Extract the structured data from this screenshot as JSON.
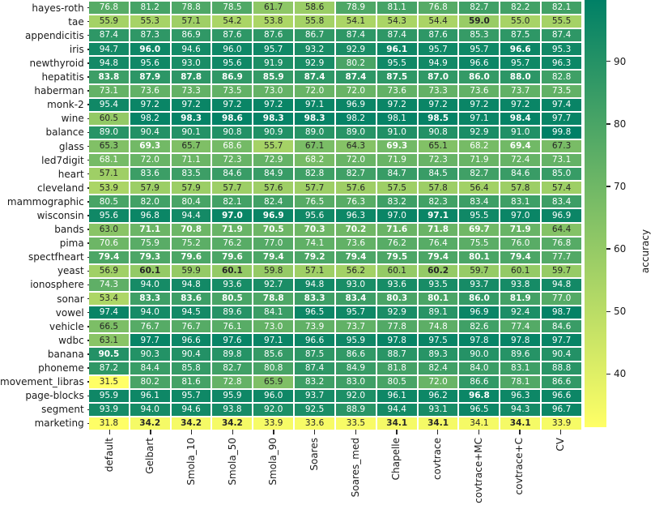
{
  "chart_data": {
    "type": "heatmap",
    "title": "",
    "xlabel": "",
    "ylabel": "",
    "rows": [
      "hayes-roth",
      "tae",
      "appendicitis",
      "iris",
      "newthyroid",
      "hepatitis",
      "haberman",
      "monk-2",
      "wine",
      "balance",
      "glass",
      "led7digit",
      "heart",
      "cleveland",
      "mammographic",
      "wisconsin",
      "bands",
      "pima",
      "spectfheart",
      "yeast",
      "ionosphere",
      "sonar",
      "vowel",
      "vehicle",
      "wdbc",
      "banana",
      "phoneme",
      "movement_libras",
      "page-blocks",
      "segment",
      "marketing"
    ],
    "columns": [
      "default",
      "Gelbart",
      "Smola_10",
      "Smola_50",
      "Smola_90",
      "Soares",
      "Soares_med",
      "Chapelle",
      "covtrace",
      "covtrace+MC",
      "covtrace+C",
      "CV"
    ],
    "values": [
      [
        76.8,
        81.2,
        78.8,
        78.5,
        61.7,
        58.6,
        78.9,
        81.1,
        76.8,
        82.7,
        82.2,
        82.1
      ],
      [
        55.9,
        55.3,
        57.1,
        54.2,
        53.8,
        55.8,
        54.1,
        54.3,
        54.4,
        59.0,
        55.0,
        55.5
      ],
      [
        87.4,
        87.3,
        86.9,
        87.6,
        87.6,
        86.7,
        87.4,
        87.4,
        87.6,
        85.3,
        87.5,
        87.4
      ],
      [
        94.7,
        96.0,
        94.6,
        96.0,
        95.7,
        93.2,
        92.9,
        96.1,
        95.7,
        95.7,
        96.6,
        95.3
      ],
      [
        94.8,
        95.6,
        93.0,
        95.6,
        91.9,
        92.9,
        80.2,
        95.5,
        94.9,
        96.6,
        95.7,
        96.3
      ],
      [
        83.8,
        87.9,
        87.8,
        86.9,
        85.9,
        87.4,
        87.4,
        87.5,
        87.0,
        86.0,
        88.0,
        82.8
      ],
      [
        73.1,
        73.6,
        73.3,
        73.5,
        73.0,
        72.0,
        72.0,
        73.6,
        73.3,
        73.6,
        73.7,
        73.5
      ],
      [
        95.4,
        97.2,
        97.2,
        97.2,
        97.2,
        97.1,
        96.9,
        97.2,
        97.2,
        97.2,
        97.2,
        97.4
      ],
      [
        60.5,
        98.2,
        98.3,
        98.6,
        98.3,
        98.3,
        98.2,
        98.1,
        98.5,
        97.1,
        98.4,
        97.7
      ],
      [
        89.0,
        90.4,
        90.1,
        90.8,
        90.9,
        89.0,
        89.0,
        91.0,
        90.8,
        92.9,
        91.0,
        99.8
      ],
      [
        65.3,
        69.3,
        65.7,
        68.6,
        55.7,
        67.1,
        64.3,
        69.3,
        65.1,
        68.2,
        69.4,
        67.3
      ],
      [
        68.1,
        72.0,
        71.1,
        72.3,
        72.9,
        68.2,
        72.0,
        71.9,
        72.3,
        71.9,
        72.4,
        73.1
      ],
      [
        57.1,
        83.6,
        83.5,
        84.6,
        84.9,
        82.8,
        82.7,
        84.7,
        84.5,
        82.7,
        84.6,
        85.0
      ],
      [
        53.9,
        57.9,
        57.9,
        57.7,
        57.6,
        57.7,
        57.6,
        57.5,
        57.8,
        56.4,
        57.8,
        57.4
      ],
      [
        80.5,
        82.0,
        80.4,
        82.1,
        82.4,
        76.5,
        76.3,
        83.2,
        82.3,
        83.4,
        83.1,
        83.4
      ],
      [
        95.6,
        96.8,
        94.4,
        97.0,
        96.9,
        95.6,
        96.3,
        97.0,
        97.1,
        95.5,
        97.0,
        96.9
      ],
      [
        63.0,
        71.1,
        70.8,
        71.9,
        70.5,
        70.3,
        70.2,
        71.6,
        71.8,
        69.7,
        71.9,
        64.4
      ],
      [
        70.6,
        75.9,
        75.2,
        76.2,
        77.0,
        74.1,
        73.6,
        76.2,
        76.4,
        75.5,
        76.0,
        76.8
      ],
      [
        79.4,
        79.3,
        79.6,
        79.6,
        79.4,
        79.2,
        79.4,
        79.5,
        79.4,
        80.1,
        79.4,
        77.7
      ],
      [
        56.9,
        60.1,
        59.9,
        60.1,
        59.8,
        57.1,
        56.2,
        60.1,
        60.2,
        59.7,
        60.1,
        59.7
      ],
      [
        74.3,
        94.0,
        94.8,
        93.6,
        92.7,
        94.8,
        93.0,
        93.6,
        93.5,
        93.7,
        93.8,
        94.8
      ],
      [
        53.4,
        83.3,
        83.6,
        80.5,
        78.8,
        83.3,
        83.4,
        80.3,
        80.1,
        86.0,
        81.9,
        77.0
      ],
      [
        97.4,
        94.0,
        94.5,
        89.6,
        84.1,
        96.5,
        95.7,
        92.9,
        89.1,
        96.9,
        92.4,
        98.7
      ],
      [
        66.5,
        76.7,
        76.7,
        76.1,
        73.0,
        73.9,
        73.7,
        77.8,
        74.8,
        82.6,
        77.4,
        84.6
      ],
      [
        63.1,
        97.7,
        96.6,
        97.6,
        97.1,
        96.6,
        95.9,
        97.8,
        97.5,
        97.8,
        97.8,
        97.7
      ],
      [
        90.5,
        90.3,
        90.4,
        89.8,
        85.6,
        87.5,
        86.6,
        88.7,
        89.3,
        90.0,
        89.6,
        90.4
      ],
      [
        87.2,
        84.4,
        85.8,
        82.7,
        80.8,
        87.4,
        84.9,
        81.8,
        82.4,
        84.0,
        83.1,
        88.8
      ],
      [
        31.5,
        80.2,
        81.6,
        72.8,
        65.9,
        83.2,
        83.0,
        80.5,
        72.0,
        86.6,
        78.1,
        86.6
      ],
      [
        95.9,
        96.1,
        95.7,
        95.9,
        96.0,
        93.7,
        92.0,
        96.1,
        96.2,
        96.8,
        96.3,
        96.6
      ],
      [
        93.9,
        94.0,
        94.6,
        93.8,
        92.0,
        92.5,
        88.9,
        94.4,
        93.1,
        96.5,
        94.3,
        96.7
      ],
      [
        31.8,
        34.2,
        34.2,
        34.2,
        33.9,
        33.6,
        33.5,
        34.1,
        34.1,
        34.1,
        34.1,
        33.9
      ]
    ],
    "bold_cells": [
      [
        1,
        9
      ],
      [
        3,
        1
      ],
      [
        3,
        7
      ],
      [
        3,
        10
      ],
      [
        5,
        0
      ],
      [
        5,
        1
      ],
      [
        5,
        2
      ],
      [
        5,
        3
      ],
      [
        5,
        4
      ],
      [
        5,
        5
      ],
      [
        5,
        6
      ],
      [
        5,
        7
      ],
      [
        5,
        8
      ],
      [
        5,
        9
      ],
      [
        5,
        10
      ],
      [
        8,
        2
      ],
      [
        8,
        3
      ],
      [
        8,
        4
      ],
      [
        8,
        5
      ],
      [
        8,
        8
      ],
      [
        8,
        10
      ],
      [
        10,
        1
      ],
      [
        10,
        7
      ],
      [
        10,
        10
      ],
      [
        15,
        3
      ],
      [
        15,
        4
      ],
      [
        15,
        8
      ],
      [
        16,
        1
      ],
      [
        16,
        2
      ],
      [
        16,
        3
      ],
      [
        16,
        4
      ],
      [
        16,
        5
      ],
      [
        16,
        6
      ],
      [
        16,
        7
      ],
      [
        16,
        8
      ],
      [
        16,
        9
      ],
      [
        16,
        10
      ],
      [
        18,
        0
      ],
      [
        18,
        1
      ],
      [
        18,
        2
      ],
      [
        18,
        3
      ],
      [
        18,
        4
      ],
      [
        18,
        5
      ],
      [
        18,
        6
      ],
      [
        18,
        7
      ],
      [
        18,
        8
      ],
      [
        18,
        9
      ],
      [
        18,
        10
      ],
      [
        19,
        1
      ],
      [
        19,
        3
      ],
      [
        19,
        8
      ],
      [
        21,
        1
      ],
      [
        21,
        2
      ],
      [
        21,
        3
      ],
      [
        21,
        4
      ],
      [
        21,
        5
      ],
      [
        21,
        6
      ],
      [
        21,
        7
      ],
      [
        21,
        8
      ],
      [
        21,
        9
      ],
      [
        21,
        10
      ],
      [
        25,
        0
      ],
      [
        28,
        9
      ],
      [
        30,
        1
      ],
      [
        30,
        2
      ],
      [
        30,
        3
      ],
      [
        30,
        7
      ],
      [
        30,
        8
      ],
      [
        30,
        10
      ]
    ],
    "colorbar": {
      "label": "accuracy",
      "ticks": [
        90,
        80,
        70,
        60,
        50,
        40
      ],
      "vmin": 31.5,
      "vmax": 99.8,
      "color_high": "#008066",
      "color_low": "#ffff66",
      "colormap": "summer_r"
    },
    "legend_position": "right-colorbar",
    "grid": false
  }
}
